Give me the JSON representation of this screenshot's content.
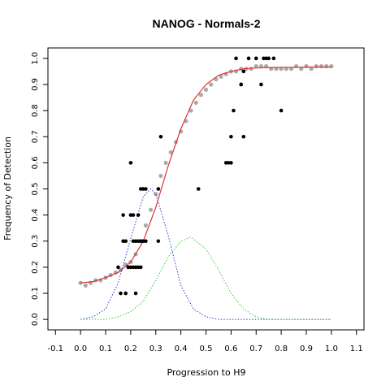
{
  "chart_data": {
    "type": "scatter",
    "title": "NANOG - Normals-2",
    "xlabel": "Progression to H9",
    "ylabel": "Frequency of Detection",
    "xlim": [
      -0.13,
      1.13
    ],
    "ylim": [
      -0.04,
      1.04
    ],
    "x_ticks": [
      "-0.1",
      "0.0",
      "0.1",
      "0.2",
      "0.3",
      "0.4",
      "0.5",
      "0.6",
      "0.7",
      "0.8",
      "0.9",
      "1.0",
      "1.1"
    ],
    "y_ticks": [
      "0.0",
      "0.1",
      "0.2",
      "0.3",
      "0.4",
      "0.5",
      "0.6",
      "0.7",
      "0.8",
      "0.9",
      "1.0"
    ],
    "grid": false,
    "colors": {
      "points": "#000000",
      "smooth_points": "#aaaaaa",
      "fitted_curve": "#dd3333",
      "gaussian_1": "#3333cc",
      "gaussian_2": "#33cc33"
    },
    "series": [
      {
        "kind": "points",
        "x": [
          0.15,
          0.16,
          0.17,
          0.17,
          0.18,
          0.18,
          0.19,
          0.19,
          0.2,
          0.2,
          0.2,
          0.21,
          0.21,
          0.21,
          0.22,
          0.22,
          0.22,
          0.23,
          0.23,
          0.23,
          0.24,
          0.24,
          0.24,
          0.25,
          0.25,
          0.26,
          0.26,
          0.31,
          0.31,
          0.32,
          0.47,
          0.58,
          0.59,
          0.6,
          0.6,
          0.61,
          0.62,
          0.64,
          0.64,
          0.65,
          0.65,
          0.67,
          0.7,
          0.72,
          0.73,
          0.74,
          0.75,
          0.77,
          0.8
        ],
        "y": [
          0.2,
          0.1,
          0.3,
          0.4,
          0.1,
          0.3,
          0.2,
          0.2,
          0.2,
          0.4,
          0.6,
          0.2,
          0.3,
          0.4,
          0.1,
          0.2,
          0.3,
          0.2,
          0.3,
          0.4,
          0.2,
          0.3,
          0.5,
          0.3,
          0.5,
          0.3,
          0.5,
          0.3,
          0.5,
          0.7,
          0.5,
          0.6,
          0.6,
          0.6,
          0.7,
          0.8,
          1.0,
          0.9,
          0.9,
          0.7,
          0.95,
          1.0,
          1.0,
          0.9,
          1.0,
          1.0,
          1.0,
          1.0,
          0.8
        ]
      },
      {
        "kind": "smoothed-points",
        "x": [
          0.0,
          0.02,
          0.04,
          0.06,
          0.08,
          0.1,
          0.12,
          0.14,
          0.16,
          0.18,
          0.2,
          0.22,
          0.24,
          0.26,
          0.28,
          0.3,
          0.32,
          0.34,
          0.36,
          0.38,
          0.4,
          0.42,
          0.44,
          0.46,
          0.48,
          0.5,
          0.52,
          0.54,
          0.56,
          0.58,
          0.6,
          0.62,
          0.64,
          0.66,
          0.68,
          0.7,
          0.72,
          0.74,
          0.76,
          0.78,
          0.8,
          0.82,
          0.84,
          0.86,
          0.88,
          0.9,
          0.92,
          0.94,
          0.96,
          0.98,
          1.0
        ],
        "y": [
          0.14,
          0.13,
          0.14,
          0.15,
          0.15,
          0.16,
          0.17,
          0.18,
          0.19,
          0.21,
          0.22,
          0.25,
          0.3,
          0.36,
          0.42,
          0.48,
          0.55,
          0.6,
          0.64,
          0.68,
          0.72,
          0.76,
          0.8,
          0.83,
          0.86,
          0.88,
          0.9,
          0.92,
          0.93,
          0.94,
          0.95,
          0.95,
          0.96,
          0.96,
          0.96,
          0.97,
          0.97,
          0.97,
          0.96,
          0.96,
          0.96,
          0.96,
          0.96,
          0.97,
          0.96,
          0.97,
          0.96,
          0.97,
          0.97,
          0.97,
          0.97
        ]
      },
      {
        "kind": "fitted-curve",
        "x": [
          0.0,
          0.05,
          0.1,
          0.15,
          0.2,
          0.25,
          0.3,
          0.35,
          0.4,
          0.45,
          0.5,
          0.55,
          0.6,
          0.65,
          0.7,
          0.75,
          0.8,
          0.85,
          0.9,
          0.95,
          1.0
        ],
        "y": [
          0.14,
          0.145,
          0.16,
          0.18,
          0.22,
          0.3,
          0.43,
          0.59,
          0.73,
          0.84,
          0.9,
          0.935,
          0.95,
          0.96,
          0.963,
          0.965,
          0.966,
          0.966,
          0.967,
          0.967,
          0.967
        ]
      },
      {
        "kind": "density-1",
        "x": [
          0.0,
          0.05,
          0.1,
          0.15,
          0.2,
          0.25,
          0.28,
          0.3,
          0.35,
          0.4,
          0.45,
          0.5,
          0.55,
          0.6,
          0.65,
          0.7,
          0.75,
          0.8,
          0.85,
          0.9,
          0.95,
          1.0
        ],
        "y": [
          0.0,
          0.01,
          0.04,
          0.14,
          0.31,
          0.47,
          0.5,
          0.48,
          0.32,
          0.13,
          0.04,
          0.01,
          0.0,
          0.0,
          0.0,
          0.0,
          0.0,
          0.0,
          0.0,
          0.0,
          0.0,
          0.0
        ]
      },
      {
        "kind": "density-2",
        "x": [
          0.0,
          0.05,
          0.1,
          0.15,
          0.2,
          0.25,
          0.3,
          0.35,
          0.4,
          0.44,
          0.5,
          0.55,
          0.6,
          0.65,
          0.7,
          0.75,
          0.8,
          0.85,
          0.9,
          0.95,
          1.0
        ],
        "y": [
          0.0,
          0.0,
          0.0,
          0.01,
          0.03,
          0.07,
          0.15,
          0.24,
          0.3,
          0.315,
          0.27,
          0.19,
          0.1,
          0.04,
          0.01,
          0.0,
          0.0,
          0.0,
          0.0,
          0.0,
          0.0
        ]
      }
    ]
  }
}
